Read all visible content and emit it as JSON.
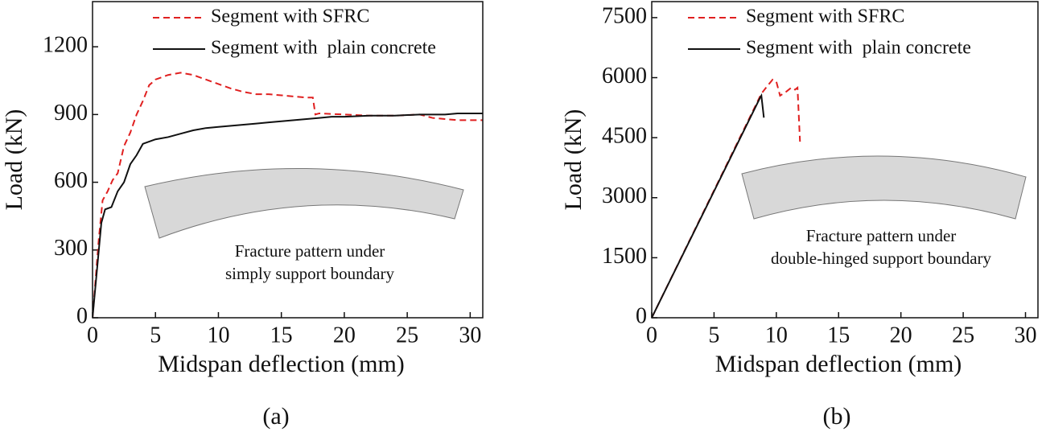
{
  "chart_data": [
    {
      "type": "line",
      "xlabel": "Midspan deflection (mm)",
      "ylabel": "Load (kN)",
      "caption": "(a)",
      "annotation": [
        "Fracture pattern under",
        "simply support boundary"
      ],
      "xlim": [
        0,
        31
      ],
      "ylim": [
        0,
        1400
      ],
      "xticks": [
        0,
        5,
        10,
        15,
        20,
        25,
        30
      ],
      "yticks": [
        0,
        300,
        600,
        900,
        1200
      ],
      "legend": "upper left",
      "series": [
        {
          "name": "Segment with SFRC",
          "color": "#e02020",
          "dash": true,
          "x": [
            0,
            0.5,
            0.8,
            1.2,
            1.6,
            2,
            2.5,
            3,
            3.5,
            4,
            4.5,
            5,
            6,
            7,
            8,
            9,
            10,
            11,
            12,
            13,
            14,
            15,
            16,
            17,
            17.5,
            17.7,
            18,
            20,
            22,
            24,
            26,
            27,
            28,
            29,
            31
          ],
          "values": [
            0,
            350,
            520,
            560,
            610,
            640,
            760,
            820,
            900,
            960,
            1030,
            1055,
            1075,
            1085,
            1075,
            1055,
            1035,
            1015,
            1000,
            990,
            990,
            985,
            980,
            975,
            975,
            900,
            905,
            900,
            895,
            895,
            900,
            885,
            880,
            875,
            875
          ]
        },
        {
          "name": "Segment with  plain concrete",
          "color": "#111111",
          "dash": false,
          "x": [
            0,
            0.5,
            0.7,
            1,
            1.5,
            2,
            2.5,
            3,
            3.5,
            4,
            5,
            6,
            7,
            8,
            9,
            10,
            11,
            12,
            13,
            14,
            15,
            16,
            17,
            18,
            19,
            20,
            22,
            24,
            26,
            28,
            29,
            30,
            31
          ],
          "values": [
            0,
            300,
            420,
            480,
            490,
            560,
            600,
            680,
            720,
            770,
            790,
            800,
            815,
            830,
            840,
            845,
            850,
            855,
            860,
            865,
            870,
            875,
            880,
            885,
            890,
            890,
            895,
            895,
            900,
            900,
            905,
            905,
            905
          ]
        }
      ]
    },
    {
      "type": "line",
      "xlabel": "Midspan deflection (mm)",
      "ylabel": "Load (kN)",
      "caption": "(b)",
      "annotation": [
        "Fracture pattern under",
        "double-hinged support boundary"
      ],
      "xlim": [
        0,
        31
      ],
      "ylim": [
        0,
        7900
      ],
      "xticks": [
        0,
        5,
        10,
        15,
        20,
        25,
        30
      ],
      "yticks": [
        0,
        1500,
        3000,
        4500,
        6000,
        7500
      ],
      "legend": "upper left",
      "series": [
        {
          "name": "Segment with SFRC",
          "color": "#e02020",
          "dash": true,
          "x": [
            0,
            8.8,
            9.3,
            9.7,
            10,
            10.3,
            10.8,
            11.2,
            11.5,
            11.7,
            11.9
          ],
          "values": [
            0,
            5600,
            5800,
            5950,
            5900,
            5550,
            5650,
            5750,
            5700,
            5750,
            4400
          ]
        },
        {
          "name": "Segment with  plain concrete",
          "color": "#111111",
          "dash": false,
          "x": [
            0,
            8.7,
            8.8,
            9.0
          ],
          "values": [
            0,
            5500,
            5550,
            5000
          ]
        }
      ]
    }
  ]
}
